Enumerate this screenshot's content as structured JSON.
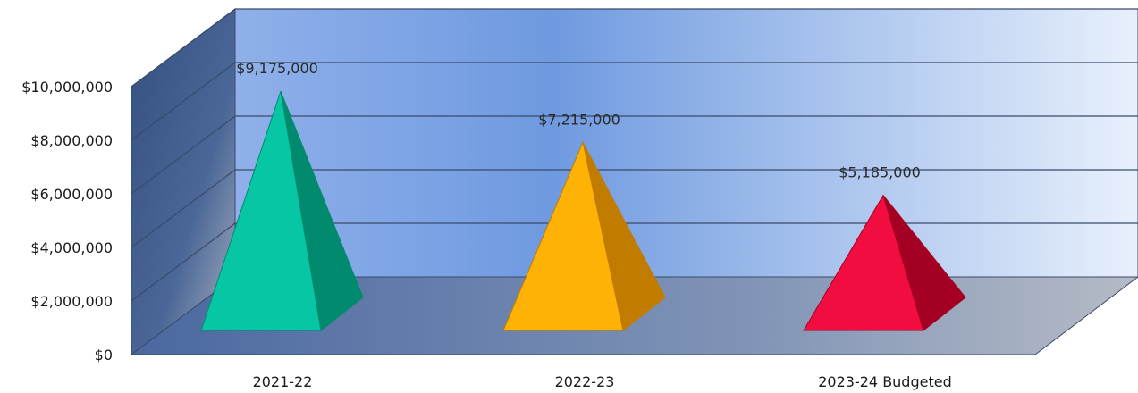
{
  "chart_data": {
    "type": "bar",
    "style": "3d-pyramid",
    "title": "",
    "xlabel": "",
    "ylabel": "",
    "categories": [
      "2021-22",
      "2022-23",
      "2023-24 Budgeted"
    ],
    "values": [
      9175000,
      7215000,
      5185000
    ],
    "data_labels": [
      "$9,175,000",
      "$7,215,000",
      "$5,185,000"
    ],
    "y_ticks": [
      "$0",
      "$2,000,000",
      "$4,000,000",
      "$6,000,000",
      "$8,000,000",
      "$10,000,000"
    ],
    "y_tick_values": [
      0,
      2000000,
      4000000,
      6000000,
      8000000,
      10000000
    ],
    "ylim": [
      0,
      10000000
    ],
    "grid": true,
    "legend": "none",
    "colors": {
      "bars_front": [
        "#06c6a4",
        "#ffb206",
        "#f20d40"
      ],
      "bars_side": [
        "#028a6e",
        "#c17c00",
        "#a30023"
      ],
      "back_wall_left": "#5b8fe0",
      "back_wall_right": "#e6effc",
      "side_wall": "#3a5a8c",
      "floor": "#5d79aa",
      "gridline": "#3a4a6a"
    }
  }
}
